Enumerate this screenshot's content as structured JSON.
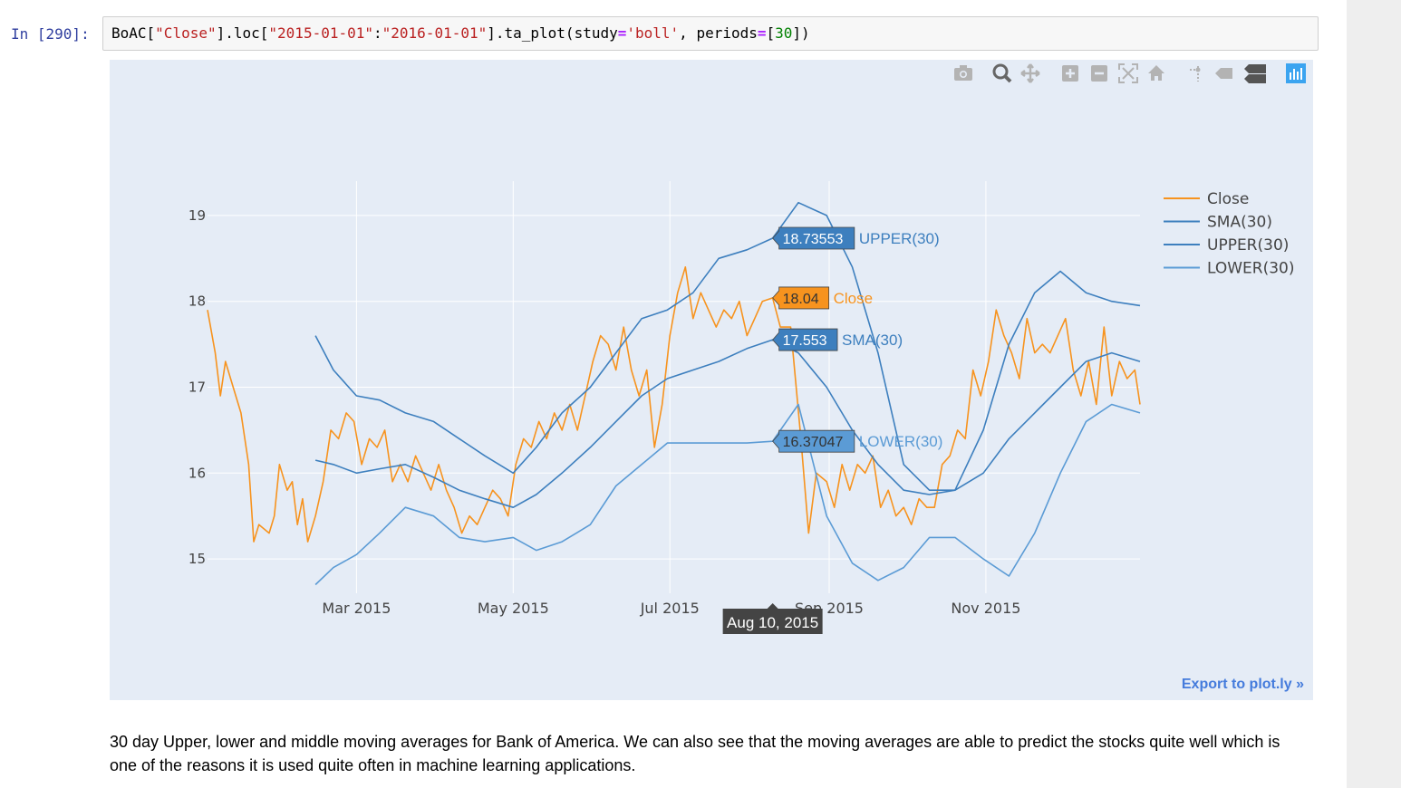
{
  "cell": {
    "prompt": "In [290]:",
    "code_tokens": [
      {
        "t": "BoAC[",
        "c": ""
      },
      {
        "t": "\"Close\"",
        "c": "c-str"
      },
      {
        "t": "].loc[",
        "c": ""
      },
      {
        "t": "\"2015-01-01\"",
        "c": "c-str"
      },
      {
        "t": ":",
        "c": ""
      },
      {
        "t": "\"2016-01-01\"",
        "c": "c-str"
      },
      {
        "t": "].ta_plot(study",
        "c": ""
      },
      {
        "t": "=",
        "c": "c-op"
      },
      {
        "t": "'boll'",
        "c": "c-str"
      },
      {
        "t": ", periods",
        "c": ""
      },
      {
        "t": "=",
        "c": "c-op"
      },
      {
        "t": "[",
        "c": ""
      },
      {
        "t": "30",
        "c": "c-num"
      },
      {
        "t": "])",
        "c": ""
      }
    ]
  },
  "toolbar": {
    "icons": [
      "camera-icon",
      "zoom-icon",
      "pan-icon",
      "zoom-in-icon",
      "zoom-out-icon",
      "autoscale-icon",
      "reset-axes-icon",
      "spike-lines-icon",
      "hover-closest-icon",
      "hover-compare-icon",
      "plotly-logo-icon"
    ]
  },
  "export_label": "Export to plot.ly »",
  "markdown_text": "30 day Upper, lower and middle moving averages for Bank of America. We can also see that the moving averages are able to predict the stocks quite well which is one of the reasons it is used quite often in machine learning applications.",
  "chart_data": {
    "type": "line",
    "title": "",
    "xlabel": "",
    "ylabel": "",
    "x_ticks": [
      "Mar 2015",
      "May 2015",
      "Jul 2015",
      "Sep 2015",
      "Nov 2015"
    ],
    "x_tick_dates": [
      "2015-03-01",
      "2015-05-01",
      "2015-07-01",
      "2015-09-01",
      "2015-11-01"
    ],
    "y_ticks": [
      15,
      16,
      17,
      18,
      19
    ],
    "xlim": [
      "2015-01-02",
      "2015-12-31"
    ],
    "ylim": [
      14.6,
      19.4
    ],
    "grid": true,
    "legend_position": "top-right",
    "series": [
      {
        "name": "Close",
        "color": "#f7931e",
        "points": [
          [
            "2015-01-02",
            17.9
          ],
          [
            "2015-01-05",
            17.4
          ],
          [
            "2015-01-07",
            16.9
          ],
          [
            "2015-01-09",
            17.3
          ],
          [
            "2015-01-12",
            17.0
          ],
          [
            "2015-01-15",
            16.7
          ],
          [
            "2015-01-18",
            16.1
          ],
          [
            "2015-01-20",
            15.2
          ],
          [
            "2015-01-22",
            15.4
          ],
          [
            "2015-01-26",
            15.3
          ],
          [
            "2015-01-28",
            15.5
          ],
          [
            "2015-01-30",
            16.1
          ],
          [
            "2015-02-02",
            15.8
          ],
          [
            "2015-02-04",
            15.9
          ],
          [
            "2015-02-06",
            15.4
          ],
          [
            "2015-02-08",
            15.7
          ],
          [
            "2015-02-10",
            15.2
          ],
          [
            "2015-02-13",
            15.5
          ],
          [
            "2015-02-16",
            15.9
          ],
          [
            "2015-02-19",
            16.5
          ],
          [
            "2015-02-22",
            16.4
          ],
          [
            "2015-02-25",
            16.7
          ],
          [
            "2015-02-28",
            16.6
          ],
          [
            "2015-03-03",
            16.1
          ],
          [
            "2015-03-06",
            16.4
          ],
          [
            "2015-03-09",
            16.3
          ],
          [
            "2015-03-12",
            16.5
          ],
          [
            "2015-03-15",
            15.9
          ],
          [
            "2015-03-18",
            16.1
          ],
          [
            "2015-03-21",
            15.9
          ],
          [
            "2015-03-24",
            16.2
          ],
          [
            "2015-03-27",
            16.0
          ],
          [
            "2015-03-30",
            15.8
          ],
          [
            "2015-04-02",
            16.1
          ],
          [
            "2015-04-05",
            15.8
          ],
          [
            "2015-04-08",
            15.6
          ],
          [
            "2015-04-11",
            15.3
          ],
          [
            "2015-04-14",
            15.5
          ],
          [
            "2015-04-17",
            15.4
          ],
          [
            "2015-04-20",
            15.6
          ],
          [
            "2015-04-23",
            15.8
          ],
          [
            "2015-04-26",
            15.7
          ],
          [
            "2015-04-29",
            15.5
          ],
          [
            "2015-05-02",
            16.1
          ],
          [
            "2015-05-05",
            16.4
          ],
          [
            "2015-05-08",
            16.3
          ],
          [
            "2015-05-11",
            16.6
          ],
          [
            "2015-05-14",
            16.4
          ],
          [
            "2015-05-17",
            16.7
          ],
          [
            "2015-05-20",
            16.5
          ],
          [
            "2015-05-23",
            16.8
          ],
          [
            "2015-05-26",
            16.5
          ],
          [
            "2015-05-29",
            16.9
          ],
          [
            "2015-06-01",
            17.3
          ],
          [
            "2015-06-04",
            17.6
          ],
          [
            "2015-06-07",
            17.5
          ],
          [
            "2015-06-10",
            17.2
          ],
          [
            "2015-06-13",
            17.7
          ],
          [
            "2015-06-16",
            17.2
          ],
          [
            "2015-06-19",
            16.9
          ],
          [
            "2015-06-22",
            17.2
          ],
          [
            "2015-06-25",
            16.3
          ],
          [
            "2015-06-28",
            16.8
          ],
          [
            "2015-07-01",
            17.6
          ],
          [
            "2015-07-04",
            18.1
          ],
          [
            "2015-07-07",
            18.4
          ],
          [
            "2015-07-10",
            17.8
          ],
          [
            "2015-07-13",
            18.1
          ],
          [
            "2015-07-16",
            17.9
          ],
          [
            "2015-07-19",
            17.7
          ],
          [
            "2015-07-22",
            17.9
          ],
          [
            "2015-07-25",
            17.8
          ],
          [
            "2015-07-28",
            18.0
          ],
          [
            "2015-07-31",
            17.6
          ],
          [
            "2015-08-03",
            17.8
          ],
          [
            "2015-08-06",
            18.0
          ],
          [
            "2015-08-10",
            18.04
          ],
          [
            "2015-08-13",
            17.7
          ],
          [
            "2015-08-17",
            17.7
          ],
          [
            "2015-08-21",
            16.4
          ],
          [
            "2015-08-24",
            15.3
          ],
          [
            "2015-08-27",
            16.0
          ],
          [
            "2015-08-31",
            15.9
          ],
          [
            "2015-09-03",
            15.6
          ],
          [
            "2015-09-06",
            16.1
          ],
          [
            "2015-09-09",
            15.8
          ],
          [
            "2015-09-12",
            16.1
          ],
          [
            "2015-09-15",
            16.0
          ],
          [
            "2015-09-18",
            16.2
          ],
          [
            "2015-09-21",
            15.6
          ],
          [
            "2015-09-24",
            15.8
          ],
          [
            "2015-09-27",
            15.5
          ],
          [
            "2015-09-30",
            15.6
          ],
          [
            "2015-10-03",
            15.4
          ],
          [
            "2015-10-06",
            15.7
          ],
          [
            "2015-10-09",
            15.6
          ],
          [
            "2015-10-12",
            15.6
          ],
          [
            "2015-10-15",
            16.1
          ],
          [
            "2015-10-18",
            16.2
          ],
          [
            "2015-10-21",
            16.5
          ],
          [
            "2015-10-24",
            16.4
          ],
          [
            "2015-10-27",
            17.2
          ],
          [
            "2015-10-30",
            16.9
          ],
          [
            "2015-11-02",
            17.3
          ],
          [
            "2015-11-05",
            17.9
          ],
          [
            "2015-11-08",
            17.6
          ],
          [
            "2015-11-11",
            17.4
          ],
          [
            "2015-11-14",
            17.1
          ],
          [
            "2015-11-17",
            17.8
          ],
          [
            "2015-11-20",
            17.4
          ],
          [
            "2015-11-23",
            17.5
          ],
          [
            "2015-11-26",
            17.4
          ],
          [
            "2015-11-29",
            17.6
          ],
          [
            "2015-12-02",
            17.8
          ],
          [
            "2015-12-05",
            17.2
          ],
          [
            "2015-12-08",
            16.9
          ],
          [
            "2015-12-11",
            17.3
          ],
          [
            "2015-12-14",
            16.8
          ],
          [
            "2015-12-17",
            17.7
          ],
          [
            "2015-12-20",
            16.9
          ],
          [
            "2015-12-23",
            17.3
          ],
          [
            "2015-12-26",
            17.1
          ],
          [
            "2015-12-29",
            17.2
          ],
          [
            "2015-12-31",
            16.8
          ]
        ]
      },
      {
        "name": "SMA(30)",
        "color": "#3d7fbe",
        "points": [
          [
            "2015-02-13",
            16.15
          ],
          [
            "2015-02-20",
            16.1
          ],
          [
            "2015-03-01",
            16.0
          ],
          [
            "2015-03-10",
            16.05
          ],
          [
            "2015-03-20",
            16.1
          ],
          [
            "2015-03-31",
            15.95
          ],
          [
            "2015-04-10",
            15.8
          ],
          [
            "2015-04-20",
            15.7
          ],
          [
            "2015-05-01",
            15.6
          ],
          [
            "2015-05-10",
            15.75
          ],
          [
            "2015-05-20",
            16.0
          ],
          [
            "2015-05-31",
            16.3
          ],
          [
            "2015-06-10",
            16.6
          ],
          [
            "2015-06-20",
            16.9
          ],
          [
            "2015-06-30",
            17.1
          ],
          [
            "2015-07-10",
            17.2
          ],
          [
            "2015-07-20",
            17.3
          ],
          [
            "2015-07-31",
            17.45
          ],
          [
            "2015-08-10",
            17.553
          ],
          [
            "2015-08-20",
            17.4
          ],
          [
            "2015-08-31",
            17.0
          ],
          [
            "2015-09-10",
            16.5
          ],
          [
            "2015-09-20",
            16.1
          ],
          [
            "2015-09-30",
            15.8
          ],
          [
            "2015-10-10",
            15.75
          ],
          [
            "2015-10-20",
            15.8
          ],
          [
            "2015-10-31",
            16.0
          ],
          [
            "2015-11-10",
            16.4
          ],
          [
            "2015-11-20",
            16.7
          ],
          [
            "2015-11-30",
            17.0
          ],
          [
            "2015-12-10",
            17.3
          ],
          [
            "2015-12-20",
            17.4
          ],
          [
            "2015-12-31",
            17.3
          ]
        ]
      },
      {
        "name": "UPPER(30)",
        "color": "#3d7fbe",
        "points": [
          [
            "2015-02-13",
            17.6
          ],
          [
            "2015-02-20",
            17.2
          ],
          [
            "2015-03-01",
            16.9
          ],
          [
            "2015-03-10",
            16.85
          ],
          [
            "2015-03-20",
            16.7
          ],
          [
            "2015-03-31",
            16.6
          ],
          [
            "2015-04-10",
            16.4
          ],
          [
            "2015-04-20",
            16.2
          ],
          [
            "2015-05-01",
            16.0
          ],
          [
            "2015-05-10",
            16.3
          ],
          [
            "2015-05-20",
            16.7
          ],
          [
            "2015-05-31",
            17.0
          ],
          [
            "2015-06-10",
            17.4
          ],
          [
            "2015-06-20",
            17.8
          ],
          [
            "2015-06-30",
            17.9
          ],
          [
            "2015-07-10",
            18.1
          ],
          [
            "2015-07-20",
            18.5
          ],
          [
            "2015-07-31",
            18.6
          ],
          [
            "2015-08-10",
            18.73553
          ],
          [
            "2015-08-20",
            19.15
          ],
          [
            "2015-08-31",
            19.0
          ],
          [
            "2015-09-10",
            18.4
          ],
          [
            "2015-09-20",
            17.4
          ],
          [
            "2015-09-30",
            16.1
          ],
          [
            "2015-10-10",
            15.8
          ],
          [
            "2015-10-20",
            15.8
          ],
          [
            "2015-10-31",
            16.5
          ],
          [
            "2015-11-10",
            17.5
          ],
          [
            "2015-11-20",
            18.1
          ],
          [
            "2015-11-30",
            18.35
          ],
          [
            "2015-12-10",
            18.1
          ],
          [
            "2015-12-20",
            18.0
          ],
          [
            "2015-12-31",
            17.95
          ]
        ]
      },
      {
        "name": "LOWER(30)",
        "color": "#5b9bd5",
        "points": [
          [
            "2015-02-13",
            14.7
          ],
          [
            "2015-02-20",
            14.9
          ],
          [
            "2015-03-01",
            15.05
          ],
          [
            "2015-03-10",
            15.3
          ],
          [
            "2015-03-20",
            15.6
          ],
          [
            "2015-03-31",
            15.5
          ],
          [
            "2015-04-10",
            15.25
          ],
          [
            "2015-04-20",
            15.2
          ],
          [
            "2015-05-01",
            15.25
          ],
          [
            "2015-05-10",
            15.1
          ],
          [
            "2015-05-20",
            15.2
          ],
          [
            "2015-05-31",
            15.4
          ],
          [
            "2015-06-10",
            15.85
          ],
          [
            "2015-06-20",
            16.1
          ],
          [
            "2015-06-30",
            16.35
          ],
          [
            "2015-07-10",
            16.35
          ],
          [
            "2015-07-20",
            16.35
          ],
          [
            "2015-07-31",
            16.35
          ],
          [
            "2015-08-10",
            16.37047
          ],
          [
            "2015-08-20",
            16.8
          ],
          [
            "2015-08-31",
            15.5
          ],
          [
            "2015-09-10",
            14.95
          ],
          [
            "2015-09-20",
            14.75
          ],
          [
            "2015-09-30",
            14.9
          ],
          [
            "2015-10-10",
            15.25
          ],
          [
            "2015-10-20",
            15.25
          ],
          [
            "2015-10-31",
            15.0
          ],
          [
            "2015-11-10",
            14.8
          ],
          [
            "2015-11-20",
            15.3
          ],
          [
            "2015-11-30",
            16.0
          ],
          [
            "2015-12-10",
            16.6
          ],
          [
            "2015-12-20",
            16.8
          ],
          [
            "2015-12-31",
            16.7
          ]
        ]
      }
    ],
    "hover": {
      "date_label": "Aug 10, 2015",
      "date": "2015-08-10",
      "labels": [
        {
          "value": "18.73553",
          "name": "UPPER(30)",
          "y": 18.73553,
          "bg": "#3d7fbe",
          "fg": "#ffffff",
          "name_color": "#3d7fbe"
        },
        {
          "value": "18.04",
          "name": "Close",
          "y": 18.04,
          "bg": "#f7931e",
          "fg": "#333333",
          "name_color": "#f7931e"
        },
        {
          "value": "17.553",
          "name": "SMA(30)",
          "y": 17.553,
          "bg": "#3d7fbe",
          "fg": "#ffffff",
          "name_color": "#3d7fbe"
        },
        {
          "value": "16.37047",
          "name": "LOWER(30)",
          "y": 16.37047,
          "bg": "#5b9bd5",
          "fg": "#333333",
          "name_color": "#5b9bd5"
        }
      ]
    }
  }
}
